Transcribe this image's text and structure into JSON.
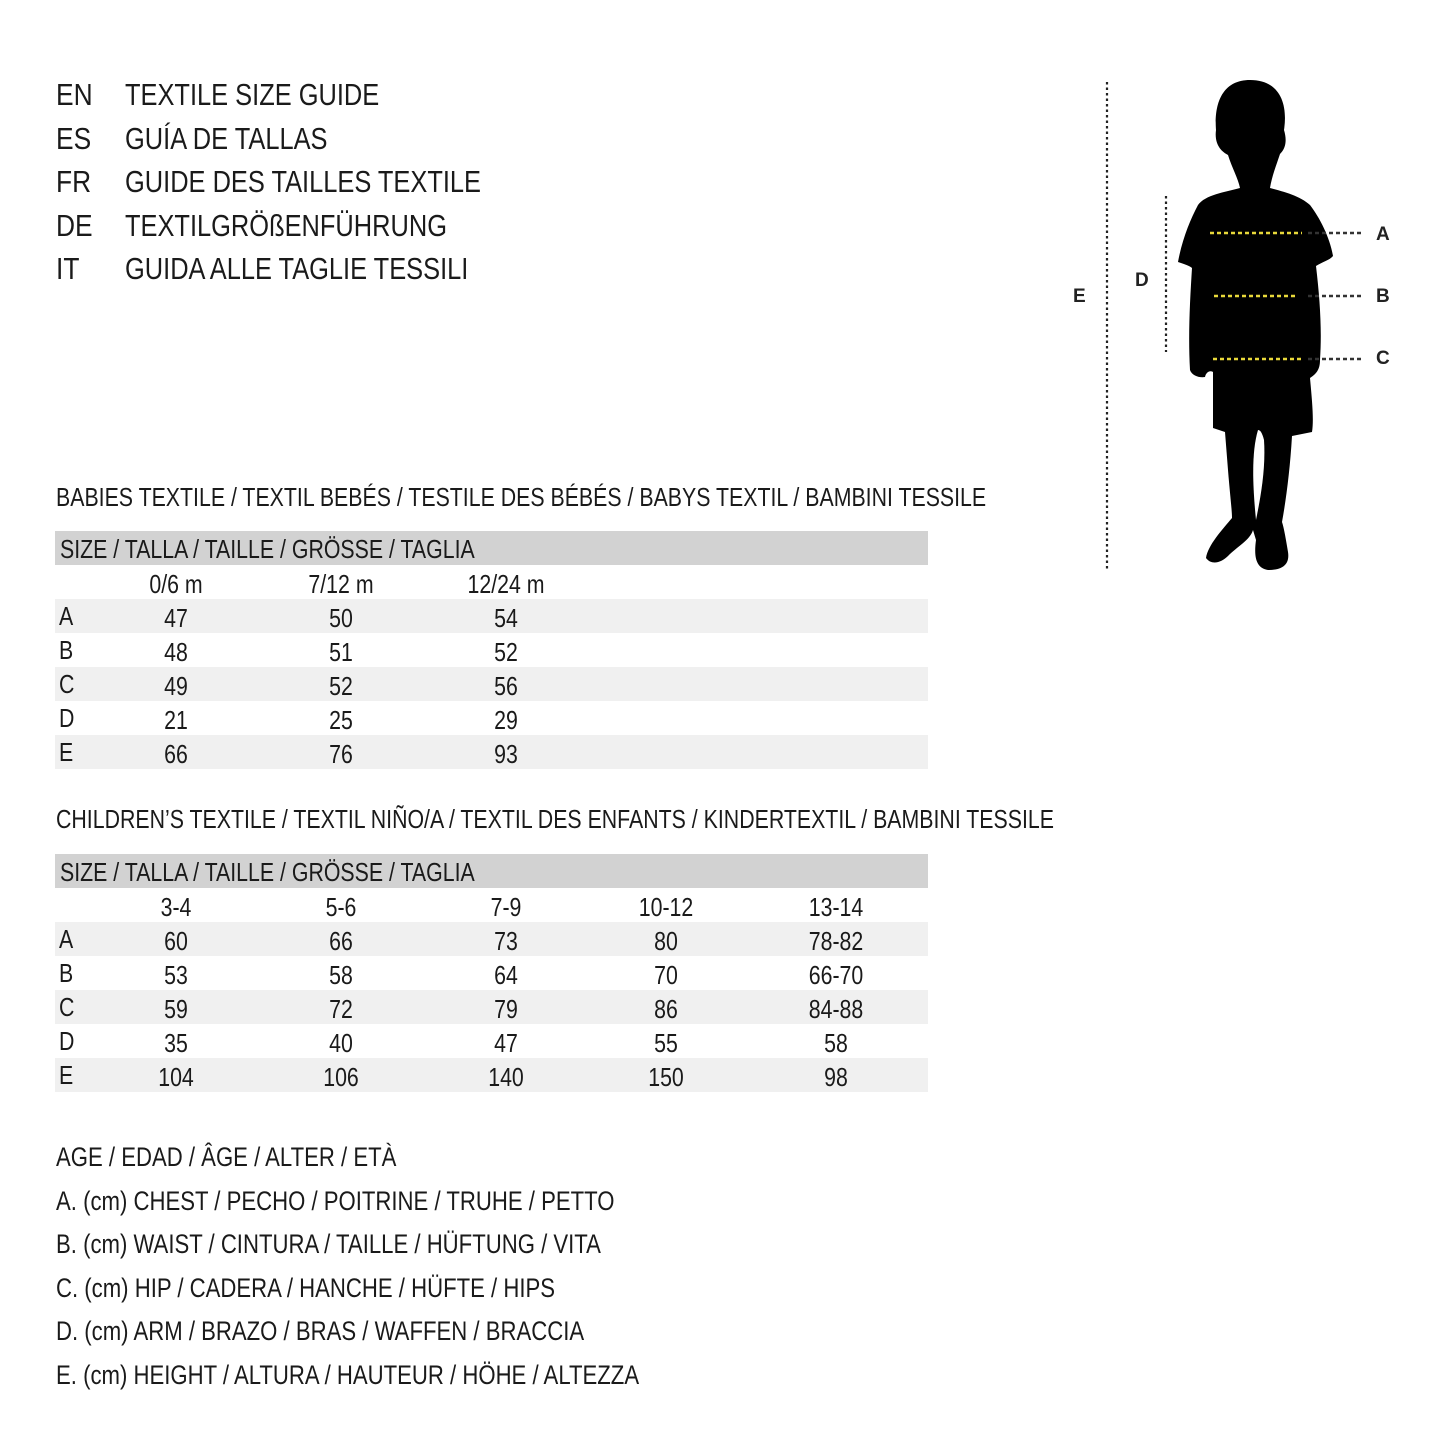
{
  "titles": [
    {
      "code": "EN",
      "text": "TEXTILE SIZE GUIDE"
    },
    {
      "code": "ES",
      "text": "GUÍA DE TALLAS"
    },
    {
      "code": "FR",
      "text": "GUIDE DES TAILLES TEXTILE"
    },
    {
      "code": "DE",
      "text": "TEXTILGRÖßENFÜHRUNG"
    },
    {
      "code": "IT",
      "text": "GUIDA ALLE TAGLIE TESSILI"
    }
  ],
  "figure": {
    "labels": {
      "a": "A",
      "b": "B",
      "c": "C",
      "d": "D",
      "e": "E"
    },
    "colors": {
      "silhouette": "#000000",
      "measure_line": "#e8d83a"
    }
  },
  "babies": {
    "heading": "BABIES TEXTILE / TEXTIL BEBÉS / TESTILE DES BÉBÉS / BABYS TEXTIL / BAMBINI TESSILE",
    "size_header": "SIZE / TALLA / TAILLE / GRÖSSE / TAGLIA",
    "columns": [
      "0/6 m",
      "7/12 m",
      "12/24 m"
    ],
    "rows": [
      {
        "label": "A",
        "values": [
          "47",
          "50",
          "54"
        ]
      },
      {
        "label": "B",
        "values": [
          "48",
          "51",
          "52"
        ]
      },
      {
        "label": "C",
        "values": [
          "49",
          "52",
          "56"
        ]
      },
      {
        "label": "D",
        "values": [
          "21",
          "25",
          "29"
        ]
      },
      {
        "label": "E",
        "values": [
          "66",
          "76",
          "93"
        ]
      }
    ]
  },
  "children": {
    "heading": "CHILDREN’S TEXTILE / TEXTIL NIÑO/A / TEXTIL DES ENFANTS / KINDERTEXTIL / BAMBINI TESSILE",
    "size_header": "SIZE / TALLA / TAILLE / GRÖSSE / TAGLIA",
    "columns": [
      "3-4",
      "5-6",
      "7-9",
      "10-12",
      "13-14"
    ],
    "rows": [
      {
        "label": "A",
        "values": [
          "60",
          "66",
          "73",
          "80",
          "78-82"
        ]
      },
      {
        "label": "B",
        "values": [
          "53",
          "58",
          "64",
          "70",
          "66-70"
        ]
      },
      {
        "label": "C",
        "values": [
          "59",
          "72",
          "79",
          "86",
          "84-88"
        ]
      },
      {
        "label": "D",
        "values": [
          "35",
          "40",
          "47",
          "55",
          "58"
        ]
      },
      {
        "label": "E",
        "values": [
          "104",
          "106",
          "140",
          "150",
          "98"
        ]
      }
    ]
  },
  "legend": [
    "AGE / EDAD / ÂGE / ALTER / ETÀ",
    "A. (cm) CHEST / PECHO / POITRINE / TRUHE / PETTO",
    "B. (cm) WAIST / CINTURA / TAILLE / HÜFTUNG / VITA",
    "C. (cm) HIP / CADERA / HANCHE / HÜFTE / HIPS",
    "D. (cm) ARM / BRAZO / BRAS / WAFFEN / BRACCIA",
    "E. (cm) HEIGHT / ALTURA / HAUTEUR / HÖHE / ALTEZZA"
  ]
}
